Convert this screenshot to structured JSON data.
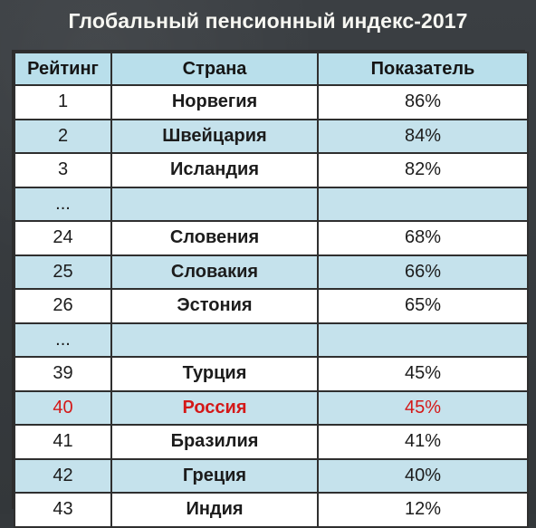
{
  "title": "Глобальный пенсионный индекс-2017",
  "colors": {
    "background": "#34383b",
    "header_fill": "#b9dfeb",
    "row_alt_fill": "#c5e2ec",
    "highlight_text": "#d41818"
  },
  "chart_data": {
    "type": "table",
    "title": "Глобальный пенсионный индекс-2017",
    "columns": [
      "Рейтинг",
      "Страна",
      "Показатель"
    ],
    "rows": [
      [
        "1",
        "Норвегия",
        "86%"
      ],
      [
        "2",
        "Швейцария",
        "84%"
      ],
      [
        "3",
        "Исландия",
        "82%"
      ],
      [
        "...",
        "",
        ""
      ],
      [
        "24",
        "Словения",
        "68%"
      ],
      [
        "25",
        "Словакия",
        "66%"
      ],
      [
        "26",
        "Эстония",
        "65%"
      ],
      [
        "...",
        "",
        ""
      ],
      [
        "39",
        "Турция",
        "45%"
      ],
      [
        "40",
        "Россия",
        "45%"
      ],
      [
        "41",
        "Бразилия",
        "41%"
      ],
      [
        "42",
        "Греция",
        "40%"
      ],
      [
        "43",
        "Индия",
        "12%"
      ]
    ],
    "highlighted_row": 10
  }
}
